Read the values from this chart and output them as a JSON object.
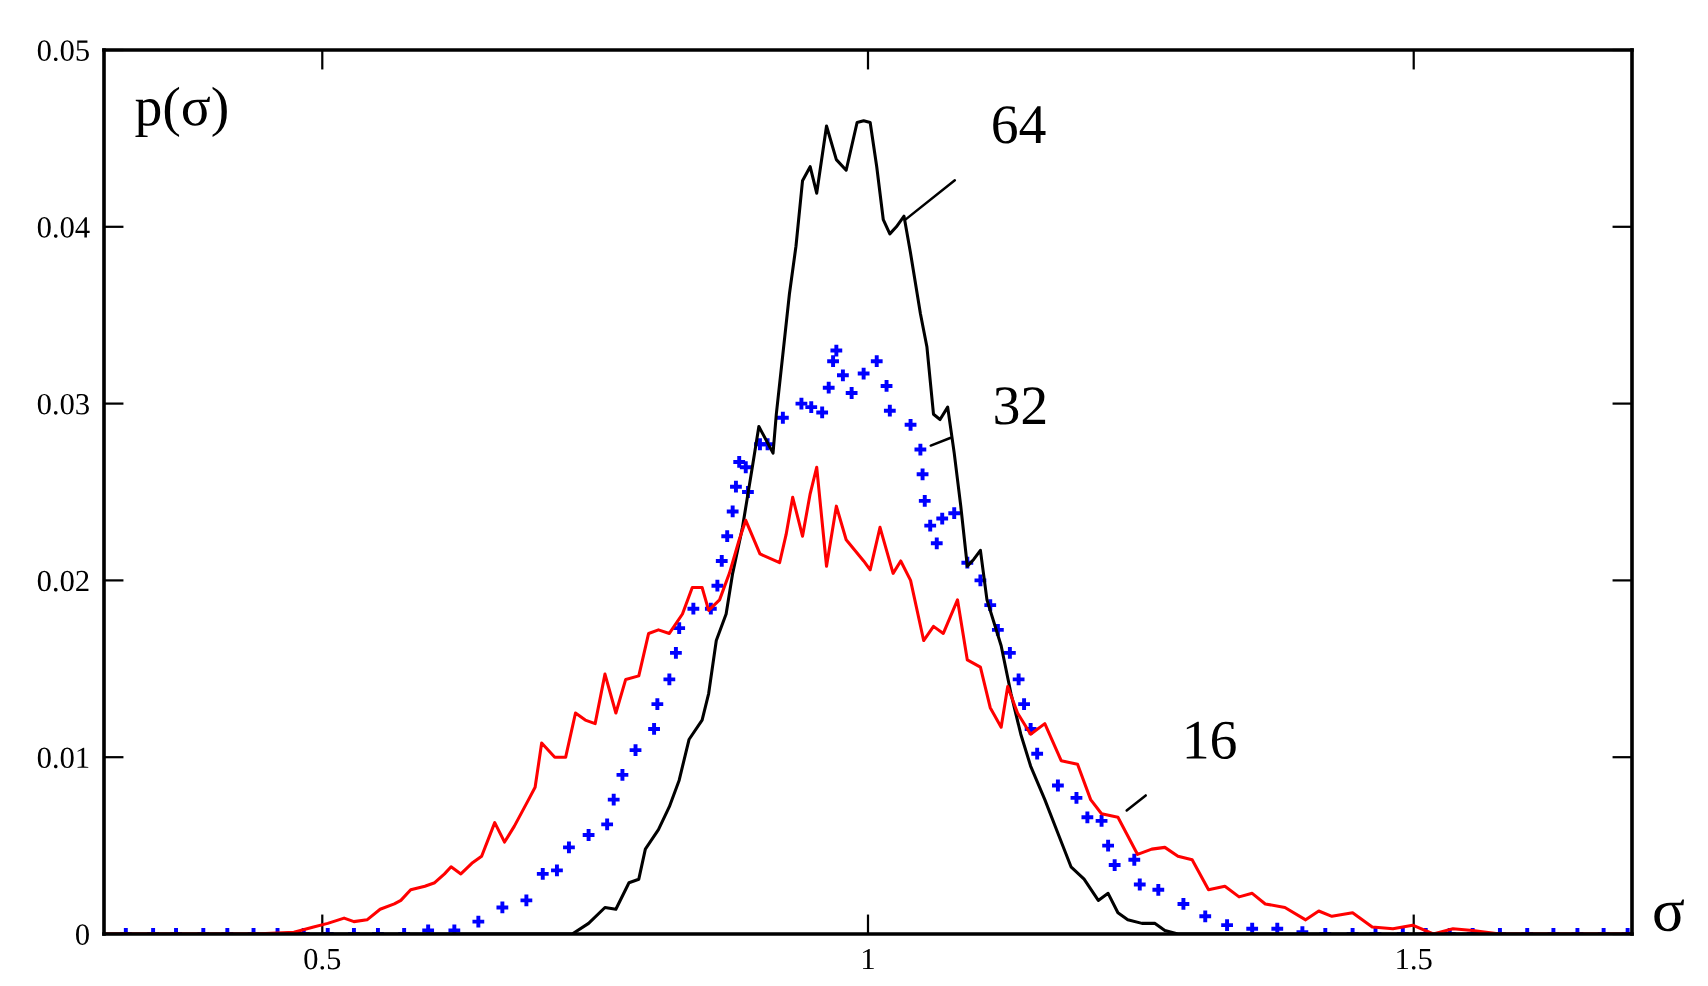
{
  "chart_data": {
    "type": "line",
    "xlabel": "σ",
    "ylabel": "p(σ)",
    "xlim": [
      0.3,
      1.7
    ],
    "ylim": [
      0,
      0.05
    ],
    "xticks": [
      0.5,
      1,
      1.5
    ],
    "yticks": [
      0,
      0.01,
      0.02,
      0.03,
      0.04,
      0.05
    ],
    "grid": false,
    "annotations": [
      {
        "text": "64",
        "x": 1.026,
        "y": 0.04
      },
      {
        "text": "32",
        "x": 1.048,
        "y": 0.0274
      },
      {
        "text": "16",
        "x": 1.229,
        "y": 0.0066
      }
    ],
    "series": [
      {
        "color": "#000000",
        "line_style": "solid",
        "marker": "none",
        "x": [
          0.3,
          0.729,
          0.744,
          0.759,
          0.769,
          0.781,
          0.79,
          0.796,
          0.808,
          0.818,
          0.827,
          0.836,
          0.848,
          0.854,
          0.861,
          0.87,
          0.876,
          0.885,
          0.894,
          0.9,
          0.907,
          0.913,
          0.916,
          0.922,
          0.928,
          0.934,
          0.94,
          0.947,
          0.953,
          0.962,
          0.971,
          0.98,
          0.99,
          0.996,
          1.002,
          1.008,
          1.014,
          1.02,
          1.026,
          1.033,
          1.039,
          1.048,
          1.054,
          1.06,
          1.066,
          1.073,
          1.079,
          1.085,
          1.091,
          1.097,
          1.103,
          1.109,
          1.122,
          1.131,
          1.14,
          1.149,
          1.162,
          1.174,
          1.186,
          1.198,
          1.211,
          1.22,
          1.229,
          1.238,
          1.251,
          1.263,
          1.272,
          1.284,
          1.7
        ],
        "values": [
          0,
          0,
          0.0006,
          0.0015,
          0.0014,
          0.0029,
          0.0031,
          0.0048,
          0.0059,
          0.0072,
          0.0087,
          0.011,
          0.0121,
          0.0136,
          0.0166,
          0.0181,
          0.0204,
          0.023,
          0.0264,
          0.0287,
          0.0279,
          0.0272,
          0.0294,
          0.0328,
          0.0362,
          0.0389,
          0.0426,
          0.0434,
          0.0419,
          0.0457,
          0.0438,
          0.0432,
          0.0459,
          0.046,
          0.0459,
          0.0434,
          0.0404,
          0.0396,
          0.04,
          0.0406,
          0.0385,
          0.0351,
          0.0332,
          0.0294,
          0.0291,
          0.0298,
          0.0272,
          0.0242,
          0.0208,
          0.0212,
          0.0217,
          0.0189,
          0.0163,
          0.0136,
          0.0113,
          0.0095,
          0.0076,
          0.0057,
          0.0038,
          0.0031,
          0.0019,
          0.0023,
          0.0012,
          0.0008,
          0.0006,
          0.0006,
          0.0002,
          0,
          0
        ]
      },
      {
        "type": "scatter",
        "color": "#0000ff",
        "marker": "cross",
        "x": [
          0.32,
          0.345,
          0.366,
          0.391,
          0.413,
          0.437,
          0.459,
          0.483,
          0.505,
          0.529,
          0.551,
          0.575,
          0.597,
          0.621,
          0.643,
          0.665,
          0.687,
          0.702,
          0.715,
          0.726,
          0.744,
          0.761,
          0.767,
          0.775,
          0.787,
          0.804,
          0.807,
          0.818,
          0.824,
          0.827,
          0.84,
          0.856,
          0.862,
          0.866,
          0.871,
          0.876,
          0.879,
          0.882,
          0.888,
          0.89,
          0.901,
          0.908,
          0.922,
          0.939,
          0.948,
          0.958,
          0.964,
          0.968,
          0.971,
          0.977,
          0.985,
          0.996,
          1.008,
          1.017,
          1.02,
          1.039,
          1.048,
          1.05,
          1.052,
          1.057,
          1.063,
          1.068,
          1.079,
          1.091,
          1.103,
          1.112,
          1.119,
          1.13,
          1.138,
          1.143,
          1.149,
          1.155,
          1.174,
          1.191,
          1.201,
          1.214,
          1.22,
          1.226,
          1.244,
          1.249,
          1.266,
          1.289,
          1.309,
          1.329,
          1.352,
          1.375,
          1.398,
          1.419,
          1.444,
          1.465,
          1.49,
          1.511,
          1.533,
          1.554,
          1.579,
          1.604,
          1.628,
          1.65,
          1.674,
          1.696
        ],
        "values": [
          0,
          0,
          0,
          0,
          0,
          0,
          0,
          0,
          0,
          0,
          0,
          0,
          0.0002,
          0.0002,
          0.0007,
          0.0015,
          0.0019,
          0.0034,
          0.0036,
          0.0049,
          0.0056,
          0.0062,
          0.0076,
          0.009,
          0.0104,
          0.0116,
          0.013,
          0.0144,
          0.0159,
          0.0173,
          0.0184,
          0.0184,
          0.0197,
          0.0211,
          0.0225,
          0.0239,
          0.0253,
          0.0267,
          0.0264,
          0.025,
          0.0277,
          0.0277,
          0.0292,
          0.03,
          0.0298,
          0.0295,
          0.0309,
          0.0324,
          0.033,
          0.0316,
          0.0306,
          0.0317,
          0.0324,
          0.031,
          0.0296,
          0.0288,
          0.0274,
          0.026,
          0.0245,
          0.0231,
          0.0221,
          0.0235,
          0.0238,
          0.021,
          0.02,
          0.0186,
          0.0172,
          0.0159,
          0.0144,
          0.013,
          0.0116,
          0.0102,
          0.0084,
          0.0077,
          0.0066,
          0.0064,
          0.005,
          0.0039,
          0.0042,
          0.0028,
          0.0025,
          0.0017,
          0.001,
          0.0005,
          0.0003,
          0.0003,
          0.0001,
          0,
          0,
          0,
          0,
          0,
          0,
          0,
          0,
          0,
          0,
          0,
          0,
          0
        ]
      },
      {
        "color": "#ff0000",
        "line_style": "solid",
        "marker": "none",
        "x": [
          0.3,
          0.437,
          0.474,
          0.492,
          0.505,
          0.52,
          0.529,
          0.541,
          0.553,
          0.566,
          0.572,
          0.581,
          0.594,
          0.603,
          0.612,
          0.618,
          0.627,
          0.637,
          0.646,
          0.658,
          0.667,
          0.676,
          0.689,
          0.695,
          0.701,
          0.713,
          0.723,
          0.732,
          0.741,
          0.75,
          0.759,
          0.769,
          0.778,
          0.79,
          0.799,
          0.808,
          0.818,
          0.83,
          0.839,
          0.848,
          0.854,
          0.864,
          0.873,
          0.882,
          0.888,
          0.901,
          0.919,
          0.925,
          0.931,
          0.94,
          0.947,
          0.953,
          0.962,
          0.971,
          0.98,
          0.996,
          1.002,
          1.011,
          1.023,
          1.03,
          1.039,
          1.051,
          1.06,
          1.069,
          1.082,
          1.091,
          1.103,
          1.112,
          1.122,
          1.128,
          1.137,
          1.149,
          1.162,
          1.177,
          1.192,
          1.204,
          1.214,
          1.229,
          1.247,
          1.26,
          1.272,
          1.284,
          1.297,
          1.312,
          1.327,
          1.34,
          1.352,
          1.364,
          1.382,
          1.401,
          1.413,
          1.425,
          1.444,
          1.462,
          1.481,
          1.499,
          1.518,
          1.536,
          1.554,
          1.579,
          1.7
        ],
        "values": [
          0,
          0,
          0.0001,
          0.0004,
          0.0006,
          0.0009,
          0.0007,
          0.0008,
          0.0014,
          0.0017,
          0.0019,
          0.0025,
          0.0027,
          0.0029,
          0.0034,
          0.0038,
          0.0034,
          0.004,
          0.0044,
          0.0063,
          0.0052,
          0.0061,
          0.0076,
          0.0083,
          0.0108,
          0.01,
          0.01,
          0.0125,
          0.0121,
          0.0119,
          0.0147,
          0.0125,
          0.0144,
          0.0146,
          0.017,
          0.0172,
          0.017,
          0.0181,
          0.0196,
          0.0196,
          0.0183,
          0.0189,
          0.0204,
          0.0223,
          0.0234,
          0.0215,
          0.021,
          0.0226,
          0.0247,
          0.0225,
          0.0249,
          0.0264,
          0.0208,
          0.0242,
          0.0223,
          0.0211,
          0.0206,
          0.023,
          0.0204,
          0.0211,
          0.02,
          0.0166,
          0.0174,
          0.017,
          0.0189,
          0.0155,
          0.0151,
          0.0128,
          0.0117,
          0.014,
          0.0125,
          0.0113,
          0.0119,
          0.0098,
          0.0096,
          0.0076,
          0.0068,
          0.0066,
          0.0045,
          0.0048,
          0.0049,
          0.0044,
          0.0042,
          0.0025,
          0.0027,
          0.0021,
          0.0023,
          0.0017,
          0.0015,
          0.0008,
          0.0013,
          0.001,
          0.0012,
          0.0004,
          0.0003,
          0.0005,
          0,
          0.0003,
          0.0002,
          0,
          0
        ]
      }
    ]
  }
}
